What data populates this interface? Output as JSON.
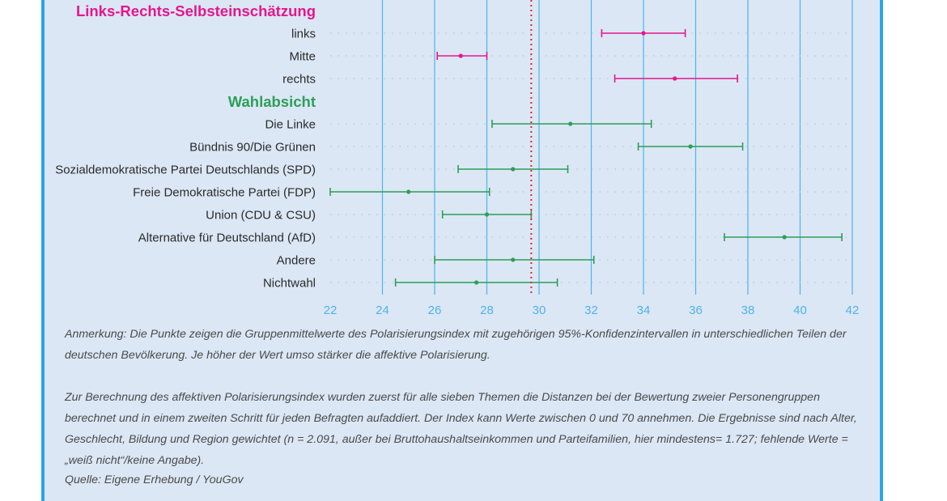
{
  "chart_data": {
    "type": "dot-errorbar",
    "orientation": "horizontal",
    "xlim": [
      22,
      42
    ],
    "xticks": [
      22,
      24,
      26,
      28,
      30,
      32,
      34,
      36,
      38,
      40,
      42
    ],
    "reference_line": 29.7,
    "groups": [
      {
        "name": "Links-Rechts-Selbsteinschätzung",
        "color": "#e5168c",
        "items": [
          {
            "label": "links",
            "mean": 34.0,
            "low": 32.4,
            "high": 35.6
          },
          {
            "label": "Mitte",
            "mean": 27.0,
            "low": 26.1,
            "high": 28.0
          },
          {
            "label": "rechts",
            "mean": 35.2,
            "low": 32.9,
            "high": 37.6
          }
        ]
      },
      {
        "name": "Wahlabsicht",
        "color": "#2e9e58",
        "items": [
          {
            "label": "Die Linke",
            "mean": 31.2,
            "low": 28.2,
            "high": 34.3
          },
          {
            "label": "Bündnis 90/Die Grünen",
            "mean": 35.8,
            "low": 33.8,
            "high": 37.8
          },
          {
            "label": "Sozialdemokratische Partei Deutschlands (SPD)",
            "mean": 29.0,
            "low": 26.9,
            "high": 31.1
          },
          {
            "label": "Freie Demokratische Partei (FDP)",
            "mean": 25.0,
            "low": 22.0,
            "high": 28.1
          },
          {
            "label": "Union (CDU & CSU)",
            "mean": 28.0,
            "low": 26.3,
            "high": 29.7
          },
          {
            "label": "Alternative für Deutschland (AfD)",
            "mean": 39.4,
            "low": 37.1,
            "high": 41.6
          },
          {
            "label": "Andere",
            "mean": 29.0,
            "low": 26.0,
            "high": 32.1
          },
          {
            "label": "Nichtwahl",
            "mean": 27.6,
            "low": 24.5,
            "high": 30.7
          }
        ]
      }
    ]
  },
  "notes": {
    "note1": "Anmerkung: Die Punkte zeigen die Gruppenmittelwerte des Polarisierungsindex mit zugehörigen 95%-Konfidenzintervallen in unterschiedlichen Teilen der deutschen Bevölkerung. Je höher der Wert umso stärker die affektive Polarisierung.",
    "note2": "Zur Berechnung des affektiven Polarisierungsindex wurden zuerst für alle sieben Themen die Distanzen bei der Bewertung zweier Personengruppen berechnet und in einem zweiten Schritt für jeden Befragten aufaddiert. Der Index kann Werte zwischen 0 und 70 annehmen. Die Ergebnisse sind nach Alter, Geschlecht, Bildung und Region gewichtet (n = 2.091, außer bei Bruttohaushaltseinkommen und Parteifamilien, hier mindestens= 1.727; fehlende Werte = „weiß nicht“/keine Angabe).",
    "source": "Quelle: Eigene Erhebung / YouGov"
  }
}
